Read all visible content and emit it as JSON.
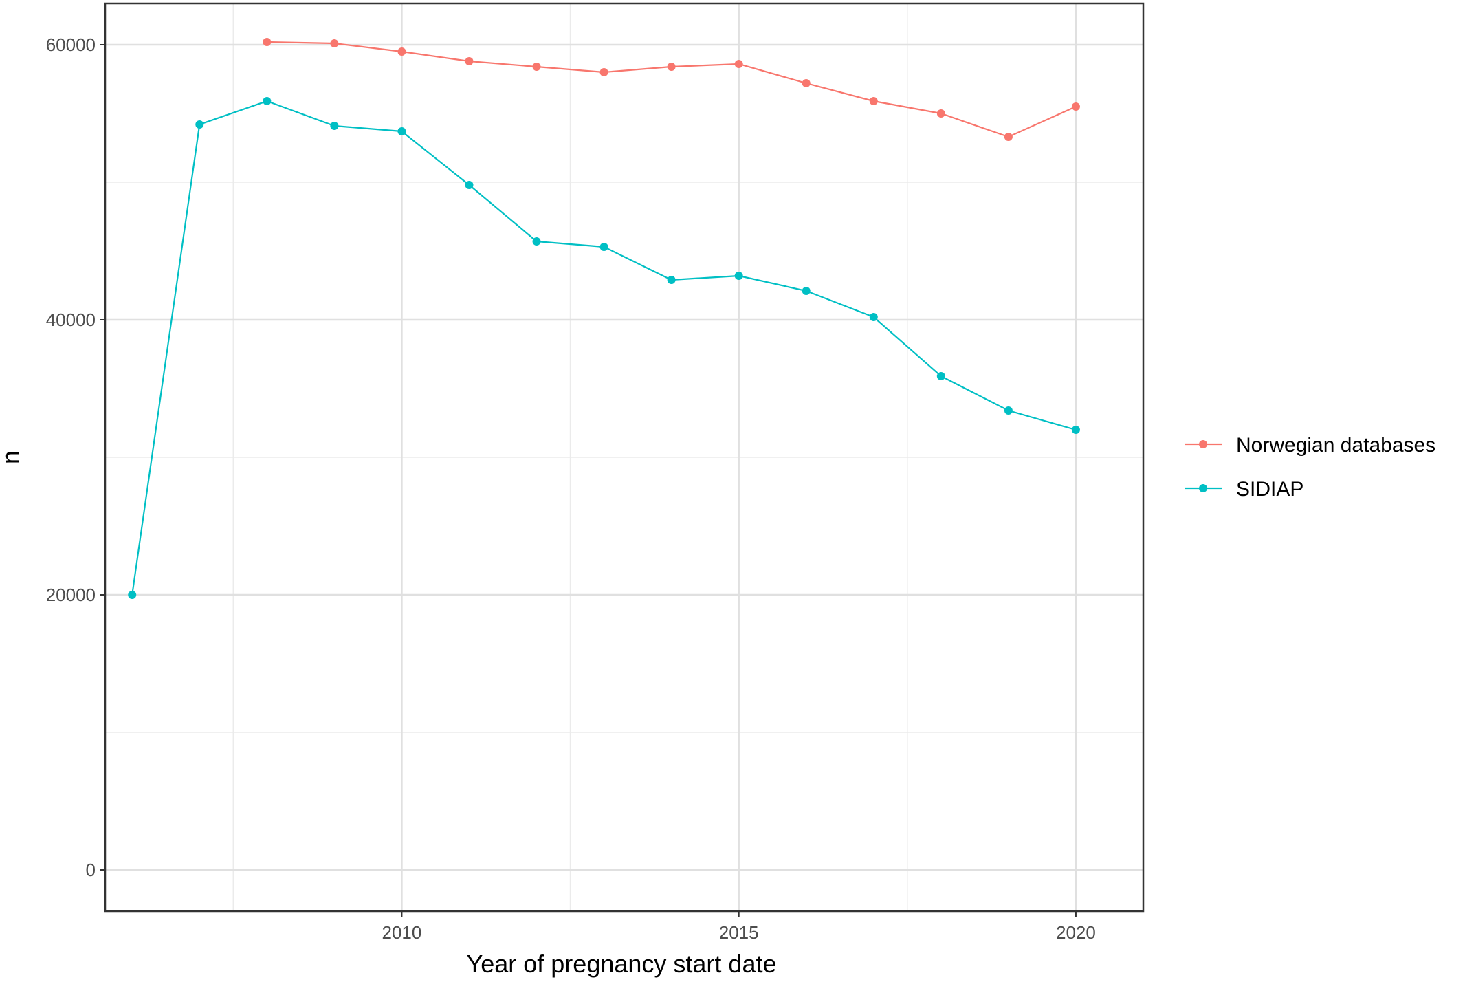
{
  "chart_data": {
    "type": "line",
    "title": "",
    "xlabel": "Year of pregnancy start date",
    "ylabel": "n",
    "xlim": [
      2005.6,
      2021.0
    ],
    "ylim": [
      -3000,
      63000
    ],
    "x_ticks": [
      2010,
      2015,
      2020
    ],
    "x_minor_ticks": [
      2007.5,
      2012.5,
      2017.5
    ],
    "y_ticks": [
      0,
      20000,
      40000,
      60000
    ],
    "y_minor_ticks": [
      10000,
      30000,
      50000
    ],
    "grid": true,
    "legend_position": "right",
    "series": [
      {
        "name": "Norwegian databases",
        "color": "#F8766D",
        "x": [
          2008,
          2009,
          2010,
          2011,
          2012,
          2013,
          2014,
          2015,
          2016,
          2017,
          2018,
          2019,
          2020
        ],
        "values": [
          60200,
          60100,
          59500,
          58800,
          58400,
          58000,
          58400,
          58600,
          57200,
          55900,
          55000,
          53300,
          55500
        ]
      },
      {
        "name": "SIDIAP",
        "color": "#00BFC4",
        "x": [
          2006,
          2007,
          2008,
          2009,
          2010,
          2011,
          2012,
          2013,
          2014,
          2015,
          2016,
          2017,
          2018,
          2019,
          2020
        ],
        "values": [
          20000,
          54200,
          55900,
          54100,
          53700,
          49800,
          45700,
          45300,
          42900,
          43200,
          42100,
          40200,
          35900,
          33400,
          32000
        ]
      }
    ]
  }
}
